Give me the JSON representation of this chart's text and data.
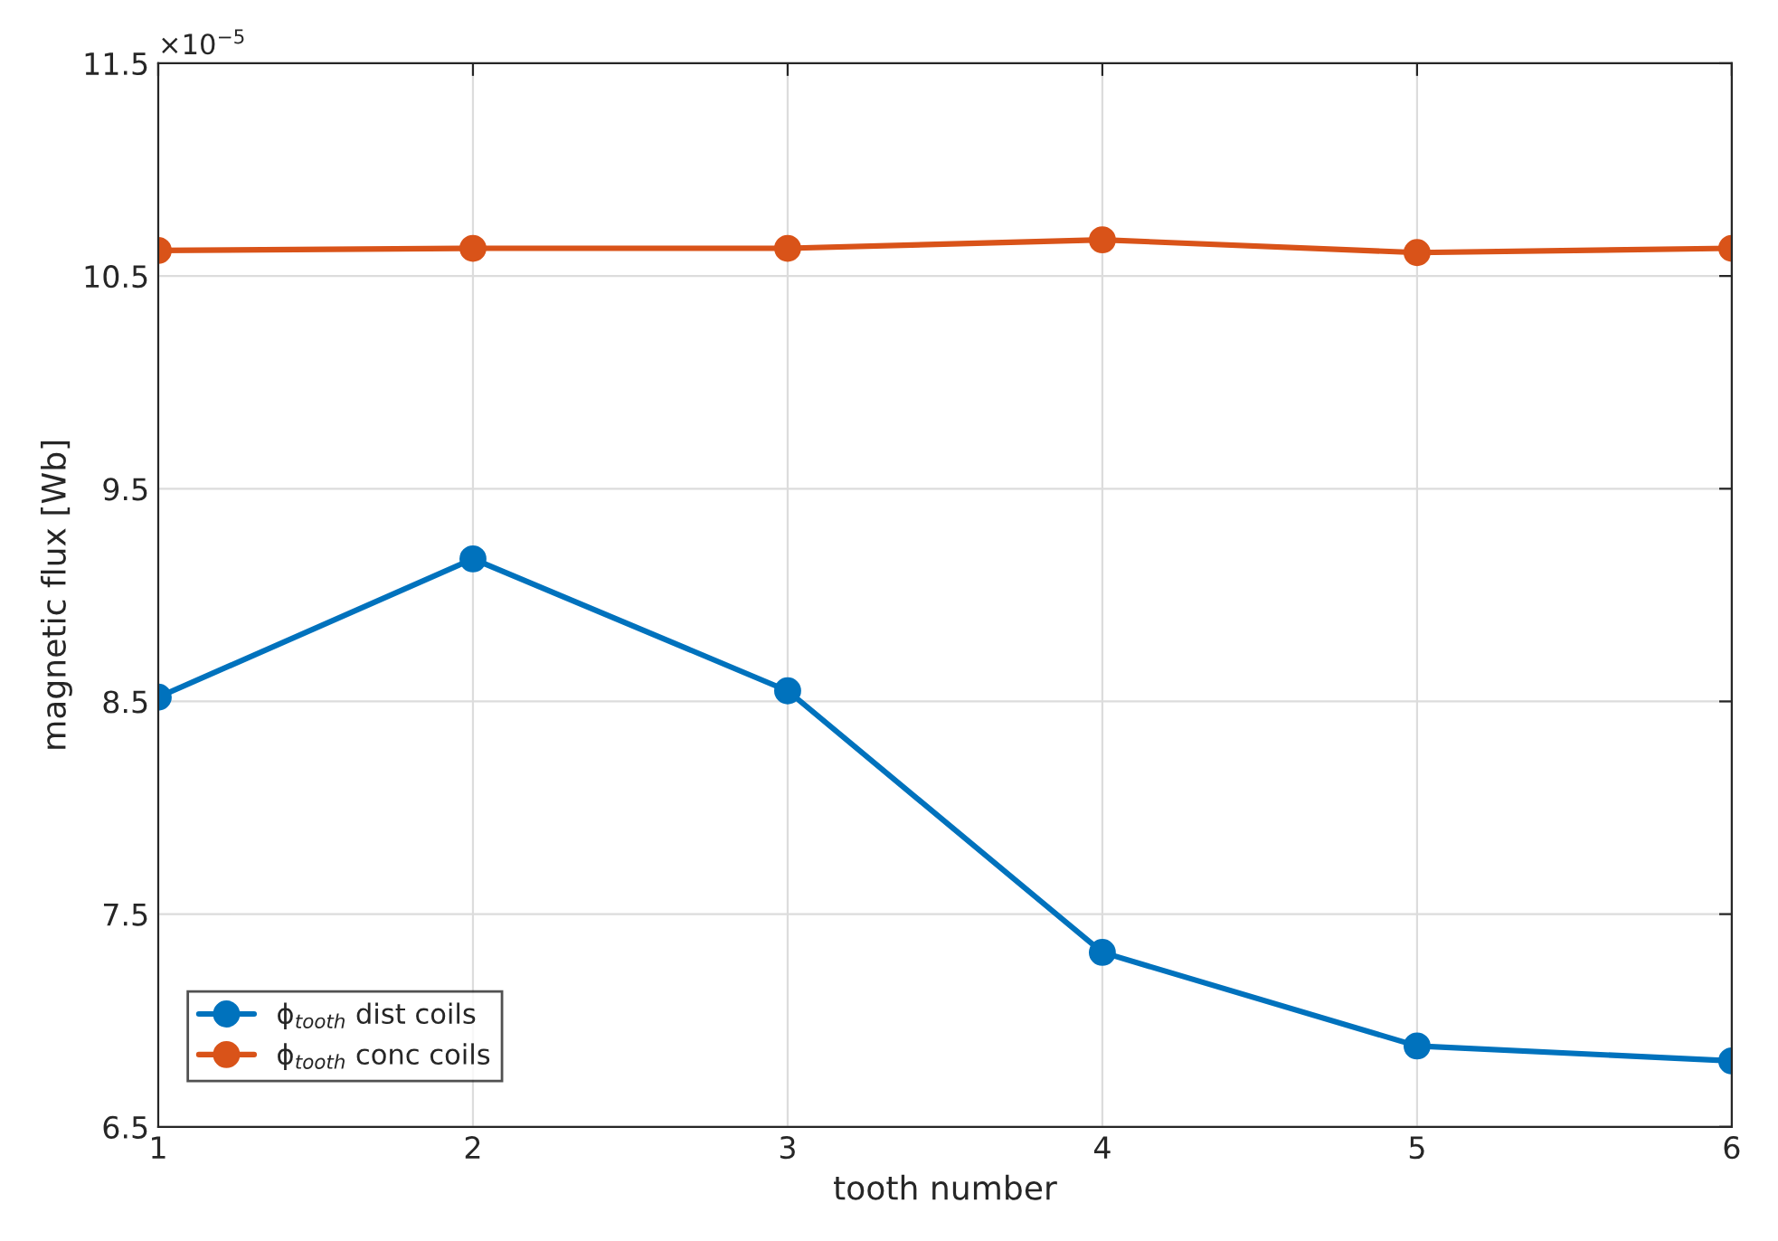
{
  "chart_data": {
    "type": "line",
    "xlabel": "tooth number",
    "ylabel": "magnetic flux [Wb]",
    "x": [
      1,
      2,
      3,
      4,
      5,
      6
    ],
    "series": [
      {
        "name": "ϕ$_{tooth}$ dist coils",
        "color": "#0072bd",
        "values": [
          8.52,
          9.17,
          8.55,
          7.32,
          6.88,
          6.81
        ]
      },
      {
        "name": "ϕ$_{tooth}$ conc coils",
        "color": "#d95319",
        "values": [
          10.62,
          10.63,
          10.63,
          10.67,
          10.61,
          10.63
        ]
      }
    ],
    "xlim": [
      1,
      6
    ],
    "xticks": [
      1,
      2,
      3,
      4,
      5,
      6
    ],
    "ylim": [
      6.5,
      11.5
    ],
    "yticks": [
      6.5,
      7.5,
      8.5,
      9.5,
      10.5,
      11.5
    ],
    "annotations": [
      "×10$^{−5}$"
    ],
    "grid": true,
    "legend": "bottom left",
    "marker": "circle",
    "line_style": "solid"
  }
}
